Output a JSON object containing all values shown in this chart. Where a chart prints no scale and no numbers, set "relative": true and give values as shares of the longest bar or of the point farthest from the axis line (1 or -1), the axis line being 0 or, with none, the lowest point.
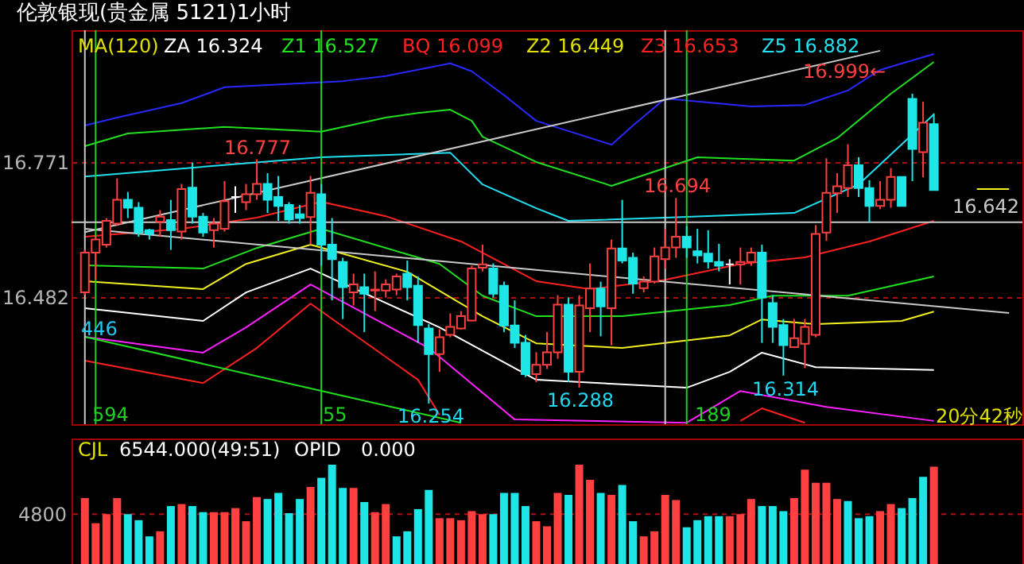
{
  "chart_data": [
    {
      "type": "candlestick",
      "title": "伦敦银现(贵金属 5121)1小时",
      "categories": [
        null,
        null,
        null,
        null,
        null,
        null,
        null,
        null,
        null,
        null,
        null,
        null,
        null,
        null,
        null,
        null,
        null,
        null,
        null,
        null,
        null,
        null,
        null,
        null,
        null,
        null,
        null,
        null,
        null,
        null,
        null,
        null,
        null,
        null,
        null,
        null,
        null,
        null,
        null,
        null,
        null,
        null,
        null,
        null,
        null,
        null,
        null,
        null,
        null,
        null,
        null,
        null,
        null,
        null,
        null,
        null,
        null,
        null,
        null,
        null,
        null,
        null,
        null,
        null,
        null,
        null,
        null,
        null,
        null,
        null,
        null,
        null,
        null,
        null,
        null,
        null,
        null,
        null,
        null,
        null,
        null,
        null,
        null,
        null,
        null,
        null,
        null
      ],
      "ohlc": [
        [
          16.492,
          16.583,
          16.486,
          16.577
        ],
        [
          16.577,
          16.611,
          16.52,
          16.605
        ],
        [
          16.594,
          16.651,
          16.588,
          16.645
        ],
        [
          16.639,
          16.736,
          16.634,
          16.69
        ],
        [
          16.69,
          16.707,
          16.651,
          16.673
        ],
        [
          16.673,
          16.685,
          16.611,
          16.62
        ],
        [
          16.625,
          16.628,
          16.605,
          16.617
        ],
        [
          16.643,
          16.668,
          16.611,
          16.654
        ],
        [
          16.647,
          16.69,
          16.583,
          16.625
        ],
        [
          16.622,
          16.724,
          16.605,
          16.713
        ],
        [
          16.716,
          16.77,
          16.639,
          16.654
        ],
        [
          16.654,
          16.662,
          16.611,
          16.62
        ],
        [
          16.625,
          16.651,
          16.588,
          16.639
        ],
        [
          16.628,
          16.73,
          16.622,
          16.687
        ],
        [
          16.696,
          16.719,
          16.662,
          16.696
        ],
        [
          16.685,
          16.724,
          16.668,
          16.702
        ],
        [
          16.702,
          16.777,
          16.69,
          16.724
        ],
        [
          16.724,
          16.747,
          16.662,
          16.69
        ],
        [
          16.696,
          16.741,
          16.645,
          16.677
        ],
        [
          16.679,
          16.685,
          16.639,
          16.648
        ],
        [
          16.659,
          16.679,
          16.639,
          16.651
        ],
        [
          16.653,
          16.741,
          16.594,
          16.705
        ],
        [
          16.702,
          16.724,
          16.549,
          16.594
        ],
        [
          16.594,
          16.651,
          16.475,
          16.563
        ],
        [
          16.557,
          16.566,
          16.435,
          16.503
        ],
        [
          16.492,
          16.532,
          16.464,
          16.509
        ],
        [
          16.503,
          16.532,
          16.407,
          16.489
        ],
        [
          16.496,
          16.537,
          16.452,
          16.498
        ],
        [
          16.496,
          16.52,
          16.481,
          16.509
        ],
        [
          16.498,
          16.532,
          16.486,
          16.526
        ],
        [
          16.532,
          16.56,
          16.475,
          16.503
        ],
        [
          16.506,
          16.526,
          16.384,
          16.422
        ],
        [
          16.415,
          16.424,
          16.254,
          16.36
        ],
        [
          16.36,
          16.413,
          16.322,
          16.396
        ],
        [
          16.401,
          16.447,
          16.396,
          16.418
        ],
        [
          16.415,
          16.452,
          16.413,
          16.441
        ],
        [
          16.432,
          16.549,
          16.43,
          16.543
        ],
        [
          16.545,
          16.594,
          16.537,
          16.552
        ],
        [
          16.543,
          16.554,
          16.481,
          16.489
        ],
        [
          16.506,
          16.515,
          16.407,
          16.421
        ],
        [
          16.421,
          16.475,
          16.373,
          16.384
        ],
        [
          16.384,
          16.401,
          16.311,
          16.317
        ],
        [
          16.317,
          16.364,
          16.3,
          16.337
        ],
        [
          16.337,
          16.407,
          16.328,
          16.364
        ],
        [
          16.364,
          16.486,
          16.35,
          16.466
        ],
        [
          16.466,
          16.481,
          16.3,
          16.322
        ],
        [
          16.322,
          16.486,
          16.288,
          16.464
        ],
        [
          16.458,
          16.554,
          16.407,
          16.5
        ],
        [
          16.5,
          16.515,
          16.398,
          16.462
        ],
        [
          16.458,
          16.605,
          16.379,
          16.586
        ],
        [
          16.586,
          16.69,
          16.554,
          16.56
        ],
        [
          16.566,
          16.577,
          16.489,
          16.511
        ],
        [
          16.501,
          16.526,
          16.492,
          16.515
        ],
        [
          16.515,
          16.588,
          16.511,
          16.569
        ],
        [
          16.563,
          16.628,
          16.543,
          16.588
        ],
        [
          16.588,
          16.694,
          16.566,
          16.611
        ],
        [
          16.611,
          16.634,
          16.566,
          16.588
        ],
        [
          16.58,
          16.628,
          16.554,
          16.571
        ],
        [
          16.575,
          16.625,
          16.543,
          16.558
        ],
        [
          16.557,
          16.596,
          16.537,
          16.549
        ],
        [
          16.552,
          16.563,
          16.509,
          16.552
        ],
        [
          16.552,
          16.588,
          16.509,
          16.557
        ],
        [
          16.557,
          16.588,
          16.549,
          16.577
        ],
        [
          16.577,
          16.594,
          16.384,
          16.481
        ],
        [
          16.469,
          16.486,
          16.384,
          16.418
        ],
        [
          16.422,
          16.435,
          16.314,
          16.379
        ],
        [
          16.375,
          16.435,
          16.373,
          16.394
        ],
        [
          16.382,
          16.435,
          16.33,
          16.418
        ],
        [
          16.401,
          16.636,
          16.396,
          16.617
        ],
        [
          16.62,
          16.779,
          16.602,
          16.705
        ],
        [
          16.704,
          16.747,
          16.662,
          16.719
        ],
        [
          16.715,
          16.809,
          16.696,
          16.764
        ],
        [
          16.764,
          16.781,
          16.696,
          16.715
        ],
        [
          16.715,
          16.732,
          16.642,
          16.677
        ],
        [
          16.677,
          16.73,
          16.67,
          16.69
        ],
        [
          16.69,
          16.758,
          16.673,
          16.739
        ],
        [
          16.739,
          16.739,
          16.677,
          16.677
        ],
        [
          16.906,
          16.917,
          16.73,
          16.799
        ],
        [
          16.792,
          16.9,
          16.738,
          16.855
        ],
        [
          16.852,
          16.875,
          16.711,
          16.711
        ],
        null,
        null,
        null,
        null,
        null,
        null,
        null
      ],
      "ylim": [
        16.21,
        17.053
      ],
      "yticks": [
        16.771,
        16.482
      ],
      "tick_labels": "y",
      "grid": "y",
      "series": [
        {
          "type": "line",
          "color": "#2828ff",
          "values": [
            16.849,
            null,
            null,
            16.866,
            null,
            null,
            null,
            null,
            null,
            16.897,
            null,
            null,
            null,
            16.931,
            null,
            null,
            null,
            null,
            null,
            null,
            null,
            null,
            null,
            null,
            16.944,
            null,
            null,
            null,
            16.955,
            null,
            null,
            null,
            null,
            null,
            16.982,
            null,
            16.965,
            null,
            null,
            16.914,
            null,
            null,
            16.859,
            null,
            null,
            null,
            null,
            null,
            null,
            16.808,
            null,
            16.849,
            null,
            null,
            16.907,
            null,
            null,
            null,
            null,
            null,
            null,
            null,
            16.89,
            null,
            null,
            null,
            null,
            16.893,
            null,
            null,
            null,
            16.924,
            null,
            null,
            16.968,
            null,
            null,
            null,
            null,
            17.002,
            null,
            null,
            null,
            null,
            null,
            null,
            null
          ]
        },
        {
          "type": "line",
          "color": "#20e020",
          "values": [
            16.805,
            null,
            null,
            null,
            16.832,
            null,
            null,
            null,
            null,
            null,
            null,
            null,
            null,
            16.846,
            null,
            null,
            null,
            null,
            null,
            null,
            null,
            null,
            16.836,
            null,
            null,
            null,
            null,
            null,
            16.866,
            null,
            null,
            16.876,
            null,
            null,
            16.883,
            null,
            16.859,
            16.825,
            null,
            null,
            null,
            null,
            16.771,
            null,
            null,
            null,
            null,
            null,
            null,
            16.72,
            null,
            null,
            null,
            null,
            null,
            null,
            null,
            16.781,
            null,
            null,
            null,
            null,
            null,
            null,
            null,
            null,
            16.774,
            null,
            null,
            null,
            16.822,
            null,
            null,
            null,
            null,
            16.917,
            null,
            null,
            null,
            16.985,
            null,
            null,
            null,
            null,
            null,
            null,
            null
          ]
        },
        {
          "type": "line",
          "color": "#20e0f0",
          "values": [
            16.74,
            null,
            null,
            null,
            null,
            null,
            null,
            null,
            null,
            16.757,
            null,
            null,
            null,
            null,
            null,
            null,
            null,
            null,
            16.774,
            null,
            null,
            null,
            16.781,
            null,
            null,
            null,
            null,
            null,
            null,
            null,
            null,
            null,
            null,
            null,
            16.791,
            null,
            null,
            16.723,
            null,
            null,
            null,
            null,
            16.672,
            null,
            null,
            16.645,
            null,
            null,
            null,
            null,
            null,
            null,
            null,
            null,
            16.652,
            null,
            null,
            null,
            null,
            null,
            null,
            null,
            null,
            null,
            null,
            null,
            16.662,
            null,
            null,
            null,
            null,
            null,
            16.723,
            null,
            null,
            null,
            null,
            null,
            null,
            16.873,
            null,
            null,
            null,
            null,
            null,
            null,
            null
          ]
        },
        {
          "type": "line",
          "color": "#ff2020",
          "values": [
            16.611,
            null,
            null,
            null,
            null,
            null,
            null,
            null,
            null,
            16.628,
            null,
            null,
            null,
            null,
            null,
            null,
            16.652,
            null,
            null,
            null,
            null,
            null,
            16.686,
            null,
            null,
            null,
            null,
            null,
            16.655,
            null,
            null,
            null,
            null,
            null,
            null,
            16.601,
            null,
            null,
            null,
            null,
            null,
            null,
            16.516,
            null,
            null,
            null,
            null,
            16.499,
            null,
            null,
            null,
            null,
            null,
            null,
            16.519,
            null,
            null,
            null,
            null,
            null,
            null,
            16.553,
            null,
            null,
            null,
            null,
            null,
            16.567,
            null,
            null,
            null,
            null,
            null,
            16.601,
            null,
            null,
            null,
            null,
            null,
            16.645,
            null,
            null,
            null,
            null,
            null,
            null,
            null
          ]
        },
        {
          "type": "line",
          "color": "#20e020",
          "values": [
            16.55,
            null,
            null,
            null,
            null,
            null,
            null,
            null,
            null,
            null,
            null,
            16.543,
            null,
            null,
            null,
            null,
            16.587,
            null,
            null,
            null,
            null,
            null,
            16.628,
            null,
            null,
            null,
            null,
            null,
            null,
            null,
            null,
            null,
            null,
            16.553,
            null,
            null,
            null,
            16.485,
            null,
            null,
            null,
            null,
            16.441,
            null,
            null,
            null,
            null,
            null,
            null,
            null,
            16.441,
            null,
            null,
            null,
            null,
            null,
            null,
            null,
            null,
            null,
            16.465,
            null,
            null,
            null,
            16.485,
            null,
            null,
            null,
            null,
            null,
            null,
            16.485,
            null,
            null,
            null,
            null,
            null,
            null,
            null,
            16.526,
            null,
            null,
            null,
            null,
            null,
            null,
            null
          ]
        },
        {
          "type": "line",
          "color": "#f0f020",
          "values": [
            16.516,
            null,
            null,
            null,
            null,
            null,
            null,
            null,
            null,
            null,
            null,
            16.499,
            null,
            null,
            null,
            16.553,
            null,
            null,
            null,
            null,
            null,
            16.594,
            null,
            null,
            null,
            null,
            null,
            null,
            null,
            null,
            16.536,
            null,
            null,
            null,
            null,
            null,
            null,
            16.441,
            null,
            null,
            null,
            null,
            16.383,
            null,
            null,
            null,
            null,
            null,
            null,
            null,
            16.373,
            null,
            null,
            null,
            null,
            null,
            null,
            null,
            null,
            null,
            16.4,
            null,
            null,
            16.434,
            null,
            null,
            null,
            null,
            16.424,
            null,
            null,
            null,
            null,
            null,
            null,
            null,
            16.431,
            null,
            null,
            16.451,
            null,
            null,
            null,
            null,
            null,
            null,
            null
          ]
        },
        {
          "type": "line",
          "color": "#ffffff",
          "values": [
            16.458,
            null,
            null,
            null,
            null,
            null,
            null,
            null,
            null,
            null,
            null,
            16.431,
            null,
            null,
            null,
            16.492,
            null,
            null,
            null,
            null,
            null,
            16.543,
            null,
            null,
            null,
            null,
            null,
            null,
            null,
            null,
            null,
            null,
            null,
            16.417,
            null,
            null,
            null,
            null,
            null,
            null,
            null,
            null,
            16.305,
            null,
            null,
            null,
            null,
            null,
            null,
            null,
            null,
            null,
            null,
            null,
            null,
            null,
            16.288,
            null,
            null,
            null,
            16.322,
            null,
            null,
            16.363,
            null,
            null,
            null,
            null,
            16.332,
            null,
            null,
            null,
            null,
            null,
            null,
            null,
            null,
            null,
            null,
            16.326,
            null,
            null,
            null,
            null,
            null,
            null,
            null
          ]
        },
        {
          "type": "line",
          "color": "#ff20ff",
          "values": [
            16.397,
            null,
            null,
            null,
            null,
            null,
            null,
            null,
            null,
            null,
            null,
            16.363,
            null,
            null,
            null,
            16.417,
            null,
            null,
            null,
            null,
            null,
            16.509,
            null,
            null,
            null,
            null,
            null,
            null,
            null,
            null,
            null,
            null,
            16.373,
            null,
            null,
            null,
            null,
            null,
            null,
            null,
            16.22,
            null,
            null,
            null,
            null,
            null,
            null,
            null,
            null,
            null,
            null,
            null,
            null,
            null,
            null,
            null,
            16.213,
            null,
            null,
            null,
            null,
            16.281,
            null,
            null,
            null,
            null,
            null,
            null,
            null,
            16.247,
            null,
            null,
            null,
            null,
            null,
            null,
            null,
            null,
            null,
            16.217,
            null,
            null,
            null,
            null,
            null,
            null,
            null
          ]
        },
        {
          "type": "line",
          "color": "#ff2020",
          "values": [
            16.346,
            null,
            null,
            null,
            null,
            null,
            null,
            null,
            null,
            null,
            null,
            16.298,
            null,
            null,
            null,
            null,
            16.373,
            null,
            null,
            null,
            null,
            16.468,
            null,
            null,
            null,
            null,
            null,
            null,
            null,
            null,
            null,
            16.305,
            null,
            16.23,
            null,
            null,
            null,
            null,
            null,
            null,
            null,
            null,
            null,
            null,
            null,
            null,
            null,
            null,
            null,
            null,
            null,
            null,
            null,
            null,
            null,
            null,
            null,
            null,
            null,
            null,
            null,
            null,
            null,
            null,
            null,
            null,
            null,
            null,
            null,
            null,
            null,
            null,
            null,
            null,
            null,
            null,
            null,
            null,
            null,
            null,
            null,
            null,
            null,
            null,
            null,
            null,
            null
          ]
        },
        {
          "type": "line",
          "color": "#ff2020",
          "values": [
            null,
            null,
            null,
            null,
            null,
            null,
            null,
            null,
            null,
            null,
            null,
            null,
            null,
            null,
            null,
            null,
            null,
            null,
            null,
            null,
            null,
            null,
            null,
            null,
            null,
            null,
            null,
            null,
            null,
            null,
            null,
            null,
            null,
            null,
            null,
            null,
            null,
            null,
            null,
            null,
            null,
            null,
            null,
            null,
            null,
            null,
            null,
            null,
            null,
            null,
            null,
            null,
            null,
            null,
            null,
            null,
            null,
            null,
            null,
            null,
            null,
            16.217,
            null,
            16.244,
            null,
            null,
            null,
            16.213,
            null,
            null,
            null,
            null,
            null,
            null,
            null,
            null,
            null,
            null,
            null,
            null,
            null,
            null,
            null,
            null,
            null,
            null,
            null
          ]
        },
        {
          "type": "line",
          "color": "#c8c8c8",
          "values": [
            16.621,
            null,
            null,
            null,
            null,
            null,
            null,
            null,
            null,
            null,
            null,
            null,
            null,
            null,
            null,
            null,
            null,
            null,
            null,
            null,
            null,
            null,
            null,
            null,
            null,
            null,
            null,
            null,
            null,
            null,
            null,
            null,
            null,
            null,
            null,
            null,
            null,
            null,
            null,
            null,
            null,
            null,
            null,
            null,
            null,
            null,
            null,
            null,
            null,
            null,
            null,
            null,
            null,
            null,
            null,
            null,
            null,
            null,
            null,
            null,
            null,
            null,
            null,
            null,
            null,
            null,
            null,
            null,
            null,
            null,
            null,
            null,
            null,
            null,
            17.009,
            null,
            null,
            null,
            null,
            null,
            null,
            null,
            null,
            null,
            null,
            null,
            null
          ]
        },
        {
          "type": "line",
          "color": "#c8c8c8",
          "values": [
            16.628,
            null,
            null,
            null,
            null,
            null,
            null,
            null,
            null,
            null,
            null,
            null,
            null,
            null,
            null,
            null,
            null,
            null,
            null,
            null,
            null,
            null,
            null,
            null,
            null,
            null,
            null,
            null,
            null,
            null,
            null,
            null,
            null,
            null,
            null,
            null,
            null,
            null,
            null,
            null,
            null,
            null,
            null,
            null,
            null,
            null,
            null,
            null,
            null,
            null,
            null,
            null,
            null,
            null,
            null,
            null,
            null,
            null,
            null,
            null,
            null,
            null,
            null,
            null,
            null,
            null,
            null,
            null,
            null,
            null,
            null,
            null,
            null,
            null,
            null,
            null,
            null,
            null,
            null,
            null,
            null,
            null,
            null,
            null,
            null,
            null,
            16.448
          ]
        },
        {
          "type": "line",
          "color": "#20e020",
          "values": [
            16.397,
            null,
            null,
            null,
            null,
            null,
            null,
            null,
            null,
            null,
            null,
            null,
            null,
            null,
            null,
            null,
            null,
            null,
            null,
            null,
            null,
            null,
            null,
            null,
            null,
            null,
            null,
            null,
            null,
            null,
            null,
            null,
            null,
            null,
            null,
            16.213,
            null,
            null,
            null,
            null,
            null,
            null,
            null,
            null,
            null,
            null,
            null,
            null,
            null,
            null,
            null,
            null,
            null,
            null,
            null,
            null,
            null,
            null,
            null,
            null,
            null,
            null,
            null,
            null,
            null,
            null,
            null,
            null,
            null,
            null,
            null,
            null,
            null,
            null,
            null,
            null,
            null,
            null,
            null,
            null,
            null,
            null,
            null,
            null,
            null,
            null,
            null
          ]
        },
        {
          "type": "line",
          "color": "#f0f020",
          "values": [
            null,
            null,
            null,
            null,
            null,
            null,
            null,
            null,
            null,
            null,
            null,
            null,
            null,
            null,
            null,
            null,
            null,
            null,
            null,
            null,
            null,
            null,
            null,
            null,
            null,
            null,
            null,
            null,
            null,
            null,
            null,
            null,
            null,
            null,
            null,
            null,
            null,
            null,
            null,
            null,
            null,
            null,
            null,
            null,
            null,
            null,
            null,
            null,
            null,
            null,
            null,
            null,
            null,
            null,
            null,
            null,
            null,
            null,
            null,
            null,
            null,
            null,
            null,
            null,
            null,
            null,
            null,
            null,
            null,
            null,
            null,
            null,
            null,
            null,
            null,
            null,
            null,
            null,
            null,
            null,
            null,
            null,
            null,
            16.713,
            null,
            null,
            16.713
          ]
        }
      ],
      "ref_lines": [
        {
          "axis": "y",
          "value": 16.642,
          "label": "16.642",
          "color": "#c8c8c8"
        }
      ],
      "annotations": [
        "MA(120)",
        "ZA 16.324",
        "Z1 16.527",
        "BQ 16.099",
        "Z2 16.449",
        "Z3 16.653",
        "Z5 16.882",
        "446",
        "20分42秒",
        "594",
        "55",
        "189",
        "16.777",
        "16.694",
        "16.999←",
        "16.254",
        "16.288",
        "16.314"
      ]
    },
    {
      "type": "bar",
      "relative": true,
      "categories": [
        null,
        null,
        null,
        null,
        null,
        null,
        null,
        null,
        null,
        null,
        null,
        null,
        null,
        null,
        null,
        null,
        null,
        null,
        null,
        null,
        null,
        null,
        null,
        null,
        null,
        null,
        null,
        null,
        null,
        null,
        null,
        null,
        null,
        null,
        null,
        null,
        null,
        null,
        null,
        null,
        null,
        null,
        null,
        null,
        null,
        null,
        null,
        null,
        null,
        null,
        null,
        null,
        null,
        null,
        null,
        null,
        null,
        null,
        null,
        null,
        null,
        null,
        null,
        null,
        null,
        null,
        null,
        null,
        null,
        null,
        null,
        null,
        null,
        null,
        null,
        null,
        null,
        null,
        null,
        null,
        null,
        null,
        null,
        null,
        null,
        null,
        null
      ],
      "values": [
        0.67,
        0.42,
        0.51,
        0.67,
        0.51,
        0.45,
        0.29,
        0.34,
        0.59,
        0.61,
        0.59,
        0.53,
        0.53,
        0.53,
        0.57,
        0.44,
        0.68,
        0.66,
        0.72,
        0.52,
        0.66,
        0.78,
        0.87,
        1.0,
        0.77,
        0.77,
        0.63,
        0.53,
        0.61,
        0.29,
        0.34,
        0.56,
        0.75,
        0.47,
        0.47,
        0.45,
        0.54,
        0.51,
        0.51,
        0.72,
        0.72,
        0.59,
        0.44,
        0.39,
        0.72,
        0.7,
        1.0,
        0.85,
        0.72,
        0.7,
        0.8,
        0.44,
        0.29,
        0.34,
        0.7,
        0.65,
        0.38,
        0.45,
        0.49,
        0.49,
        0.49,
        0.51,
        0.66,
        0.59,
        0.59,
        0.54,
        0.67,
        0.95,
        0.82,
        0.82,
        0.66,
        0.64,
        0.47,
        0.49,
        0.54,
        0.61,
        0.57,
        0.67,
        0.88,
        0.98,
        null,
        null,
        null,
        null,
        null,
        null,
        null
      ],
      "colors": [
        "#ff4040",
        "#ff4040",
        "#ff4040",
        "#ff4040",
        "#1ee6e6",
        "#1ee6e6",
        "#1ee6e6",
        "#ff4040",
        "#1ee6e6",
        "#ff4040",
        "#1ee6e6",
        "#1ee6e6",
        "#ff4040",
        "#ff4040",
        "#ff4040",
        "#ff4040",
        "#ff4040",
        "#1ee6e6",
        "#1ee6e6",
        "#1ee6e6",
        "#1ee6e6",
        "#ff4040",
        "#1ee6e6",
        "#1ee6e6",
        "#1ee6e6",
        "#ff4040",
        "#1ee6e6",
        "#ff4040",
        "#ff4040",
        "#1ee6e6",
        "#1ee6e6",
        "#1ee6e6",
        "#1ee6e6",
        "#ff4040",
        "#ff4040",
        "#ff4040",
        "#ff4040",
        "#ff4040",
        "#1ee6e6",
        "#1ee6e6",
        "#1ee6e6",
        "#1ee6e6",
        "#ff4040",
        "#ff4040",
        "#ff4040",
        "#1ee6e6",
        "#ff4040",
        "#ff4040",
        "#1ee6e6",
        "#ff4040",
        "#1ee6e6",
        "#1ee6e6",
        "#ff4040",
        "#ff4040",
        "#ff4040",
        "#ff4040",
        "#1ee6e6",
        "#1ee6e6",
        "#1ee6e6",
        "#1ee6e6",
        "#ff4040",
        "#ff4040",
        "#ff4040",
        "#1ee6e6",
        "#1ee6e6",
        "#1ee6e6",
        "#ff4040",
        "#ff4040",
        "#ff4040",
        "#ff4040",
        "#ff4040",
        "#1ee6e6",
        "#1ee6e6",
        "#1ee6e6",
        "#ff4040",
        "#ff4040",
        "#1ee6e6",
        "#1ee6e6",
        "#1ee6e6",
        "#ff4040",
        null,
        null,
        null,
        null,
        null,
        null,
        null
      ],
      "ref_lines": [
        {
          "axis": "y",
          "value": 0.51,
          "color": "#b01010",
          "line_style": "dashed"
        }
      ],
      "annotations": [
        "CJL",
        "6544.000(49:51)",
        "OPID",
        "0.000",
        "4800"
      ]
    }
  ]
}
